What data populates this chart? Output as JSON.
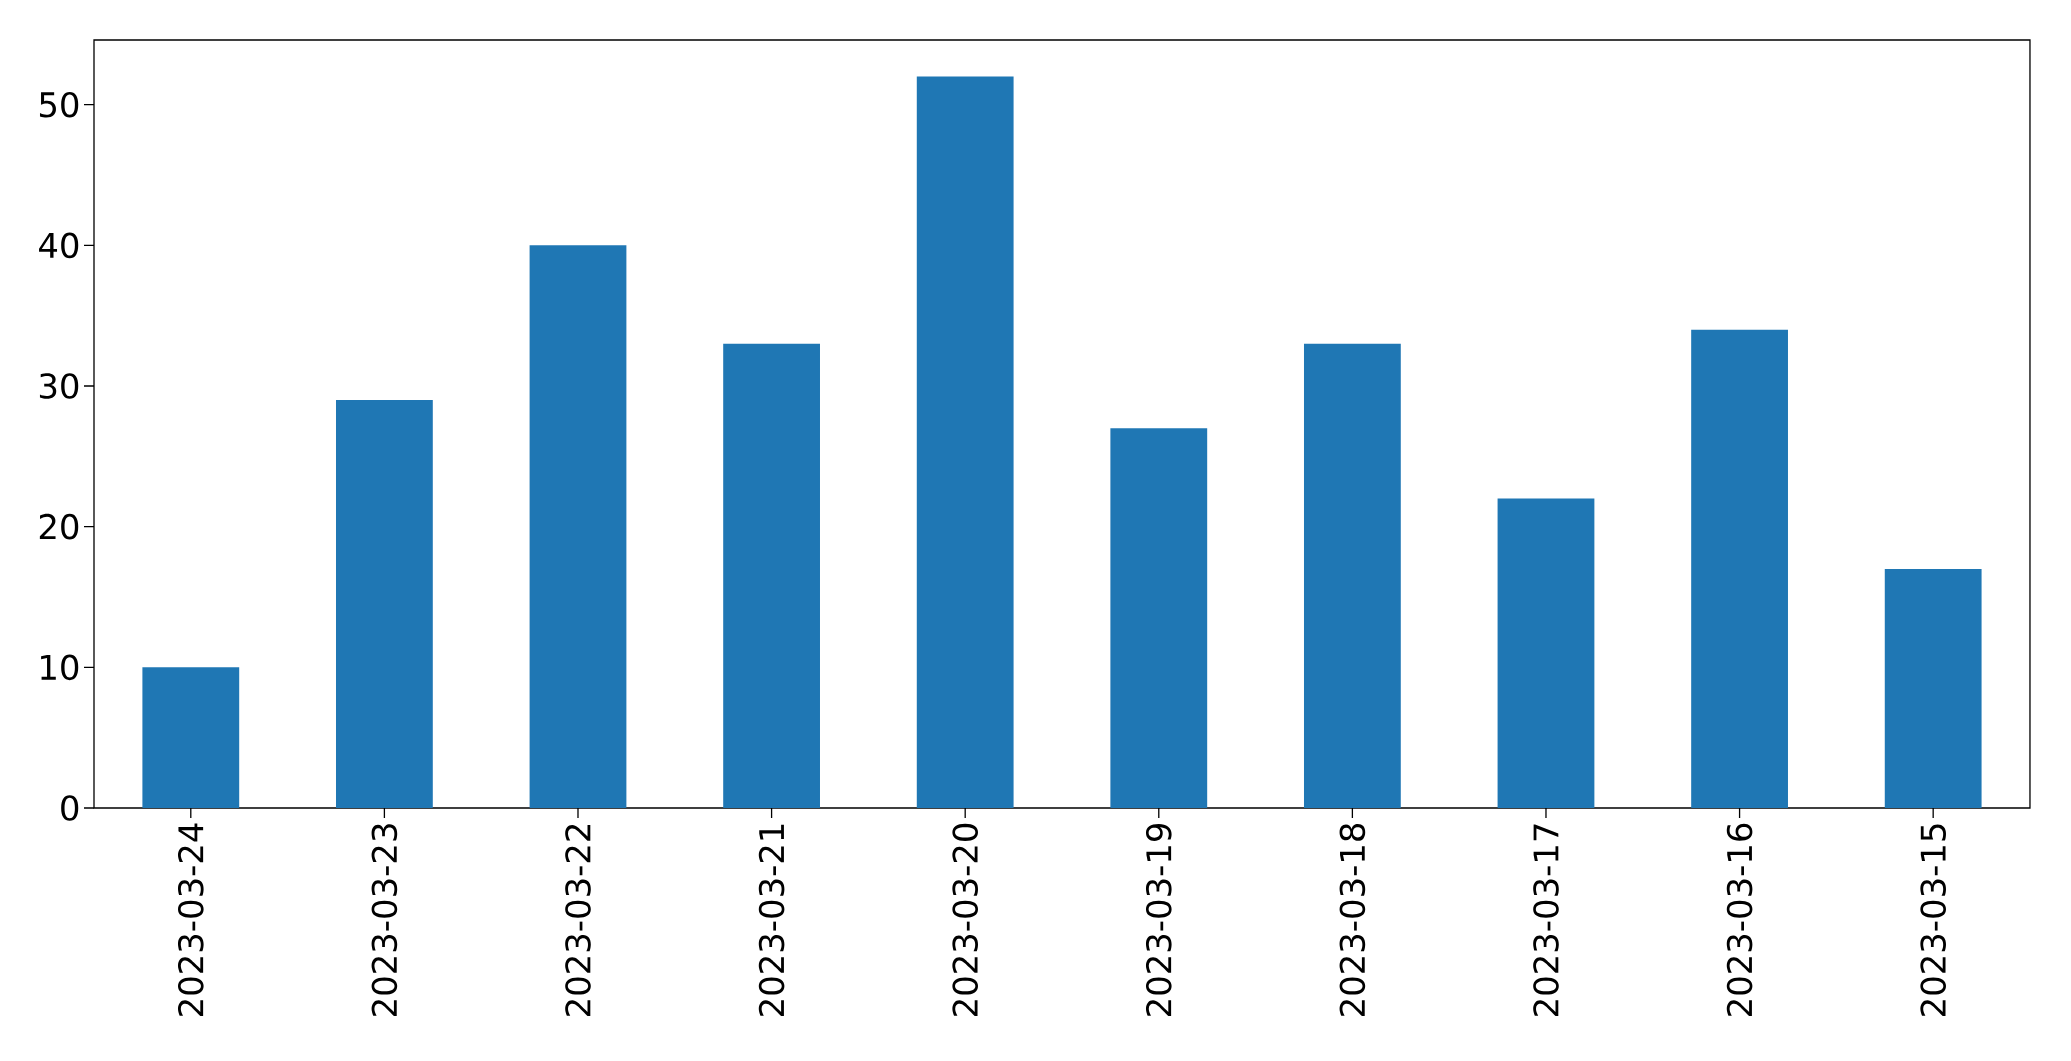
{
  "chart_data": {
    "type": "bar",
    "categories": [
      "2023-03-24",
      "2023-03-23",
      "2023-03-22",
      "2023-03-21",
      "2023-03-20",
      "2023-03-19",
      "2023-03-18",
      "2023-03-17",
      "2023-03-16",
      "2023-03-15"
    ],
    "values": [
      10,
      29,
      40,
      33,
      52,
      27,
      33,
      22,
      34,
      17
    ],
    "color": "#1f77b4",
    "ylim": [
      0,
      54.6
    ],
    "yticks": [
      0,
      10,
      20,
      30,
      40,
      50
    ]
  }
}
